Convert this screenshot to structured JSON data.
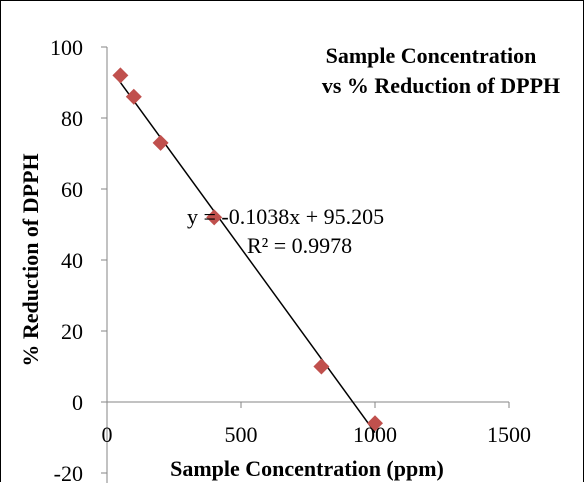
{
  "chart_data": {
    "type": "scatter",
    "title_lines": [
      "Sample Concentration",
      "vs % Reduction of DPPH"
    ],
    "xlabel": "Sample Concentration (ppm)",
    "ylabel": "% Reduction of DPPH",
    "xlim": [
      0,
      1500
    ],
    "ylim": [
      -20,
      100
    ],
    "x_ticks": [
      0,
      500,
      1000,
      1500
    ],
    "y_ticks": [
      -20,
      0,
      20,
      40,
      60,
      80,
      100
    ],
    "series": [
      {
        "points": [
          {
            "x": 50,
            "y": 92
          },
          {
            "x": 100,
            "y": 86
          },
          {
            "x": 200,
            "y": 73
          },
          {
            "x": 400,
            "y": 52
          },
          {
            "x": 800,
            "y": 10
          },
          {
            "x": 1000,
            "y": -6
          }
        ],
        "marker_color": "#c0504d"
      }
    ],
    "trendline": {
      "slope": -0.1038,
      "intercept": 95.205,
      "x_range": [
        40,
        1000
      ],
      "color": "#000000",
      "equation_text": "y = -0.1038x + 95.205",
      "r2_text": "R² = 0.9978"
    },
    "grid": false,
    "legend": "none"
  }
}
